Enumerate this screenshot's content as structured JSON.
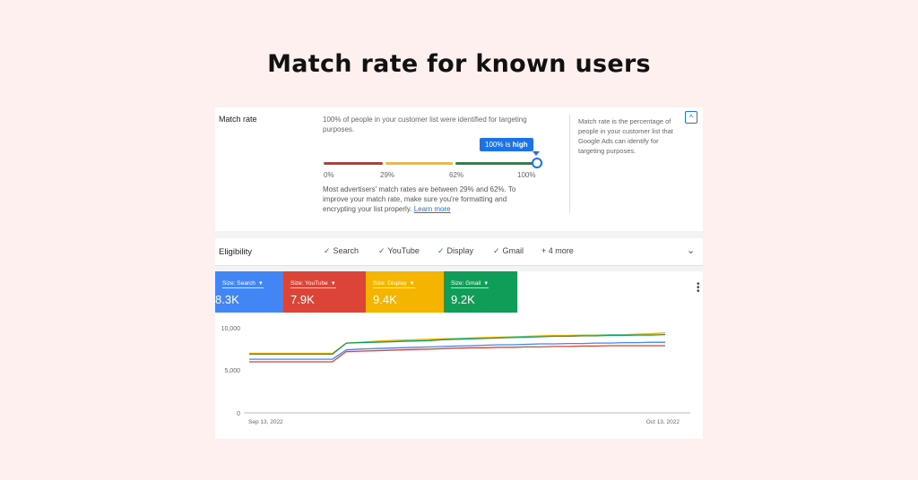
{
  "title": "Match rate for known users",
  "match_rate": {
    "label": "Match rate",
    "description": "100% of people in your customer list were identified for targeting purposes.",
    "badge_prefix": "100% is",
    "badge_strong": "high",
    "ticks": [
      "0%",
      "29%",
      "62%",
      "100%"
    ],
    "note": "Most advertisers' match rates are between 29% and 62%. To improve your match rate, make sure you're formatting and encrypting your list properly.",
    "learn_more": "Learn more",
    "help_text": "Match rate is the percentage of people in your customer list that Google Ads can identify for targeting purposes.",
    "value_percent": 100,
    "colors": {
      "low": "#d93025",
      "mid": "#fbbc04",
      "high": "#1e8e3e",
      "accent": "#1a73e8"
    }
  },
  "eligibility": {
    "label": "Eligibility",
    "chips": [
      "Search",
      "YouTube",
      "Display",
      "Gmail"
    ],
    "more": "+ 4 more"
  },
  "tiles": [
    {
      "label": "Size: Search",
      "value": "8.3K",
      "color": "#4285f4"
    },
    {
      "label": "Size: YouTube",
      "value": "7.9K",
      "color": "#db4437"
    },
    {
      "label": "Size: Display",
      "value": "9.4K",
      "color": "#f4b400"
    },
    {
      "label": "Size: Gmail",
      "value": "9.2K",
      "color": "#0f9d58"
    }
  ],
  "chart_data": {
    "type": "line",
    "x": [
      "Sep 13, 2022",
      "Sep 14",
      "Sep 15",
      "Sep 16",
      "Sep 17",
      "Sep 18",
      "Sep 19",
      "Sep 20",
      "Sep 21",
      "Sep 22",
      "Sep 23",
      "Sep 24",
      "Sep 25",
      "Sep 26",
      "Sep 27",
      "Sep 28",
      "Sep 29",
      "Sep 30",
      "Oct 1",
      "Oct 2",
      "Oct 3",
      "Oct 4",
      "Oct 5",
      "Oct 6",
      "Oct 7",
      "Oct 8",
      "Oct 9",
      "Oct 10",
      "Oct 11",
      "Oct 12",
      "Oct 13, 2022"
    ],
    "x_ticks": [
      "Sep 13, 2022",
      "Oct 13, 2022"
    ],
    "y_ticks": [
      "0",
      "5,000",
      "10,000"
    ],
    "ylim": [
      0,
      10000
    ],
    "series": [
      {
        "color": "#f4b400",
        "values": [
          7000,
          7000,
          7000,
          7000,
          7000,
          7000,
          7000,
          8200,
          8300,
          8400,
          8500,
          8550,
          8600,
          8650,
          8700,
          8750,
          8800,
          8850,
          8900,
          8950,
          9000,
          9050,
          9100,
          9100,
          9150,
          9150,
          9200,
          9200,
          9250,
          9300,
          9400
        ]
      },
      {
        "color": "#0f9d58",
        "values": [
          6900,
          6900,
          6900,
          6900,
          6900,
          6900,
          6900,
          8200,
          8250,
          8300,
          8350,
          8400,
          8450,
          8500,
          8600,
          8650,
          8700,
          8750,
          8800,
          8850,
          8900,
          8950,
          9000,
          9000,
          9050,
          9050,
          9100,
          9100,
          9150,
          9150,
          9200
        ]
      },
      {
        "color": "#4285f4",
        "values": [
          6300,
          6300,
          6300,
          6300,
          6300,
          6300,
          6300,
          7400,
          7500,
          7550,
          7600,
          7650,
          7700,
          7750,
          7800,
          7850,
          7900,
          7950,
          8000,
          8000,
          8050,
          8100,
          8100,
          8150,
          8150,
          8200,
          8200,
          8250,
          8250,
          8300,
          8300
        ]
      },
      {
        "color": "#db4437",
        "values": [
          6000,
          6000,
          6000,
          6000,
          6000,
          6000,
          6000,
          7200,
          7250,
          7300,
          7350,
          7400,
          7450,
          7500,
          7550,
          7600,
          7650,
          7650,
          7700,
          7700,
          7750,
          7750,
          7800,
          7800,
          7850,
          7850,
          7900,
          7900,
          7900,
          7900,
          7900
        ]
      }
    ]
  }
}
